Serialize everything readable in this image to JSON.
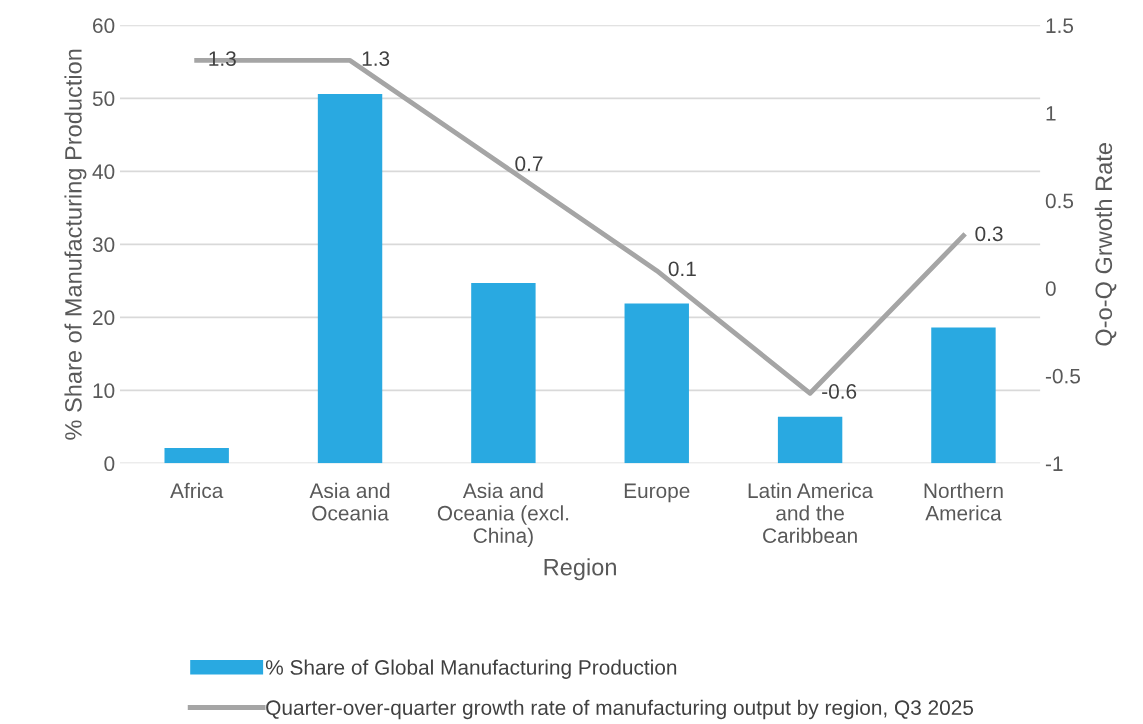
{
  "chart_data": {
    "type": "bar",
    "xlabel": "Region",
    "ylabel": "% Share of Manufacturing Production",
    "y2label": "Q-o-Q Grwoth Rate",
    "categories": [
      "Africa",
      "Asia and\nOceania",
      "Asia and\nOceania (excl.\nChina)",
      "Europe",
      "Latin America\nand the\nCaribbean",
      "Northern\nAmerica"
    ],
    "series": [
      {
        "name": "% Share of Global Manufacturing Production",
        "color": "#29a9e1",
        "values": [
          2.1,
          50.6,
          24.7,
          21.9,
          6.4,
          18.6
        ]
      },
      {
        "name": "Quarter-over-quarter growth rate of manufacturing output by region, Q3 2025",
        "type": "line",
        "axis": "y2",
        "color": "#a5a5a5",
        "data_labels": true,
        "marker": "none",
        "values": [
          1.3,
          1.3,
          0.7,
          0.1,
          -0.6,
          0.3
        ]
      }
    ],
    "ylim": [
      0,
      60
    ],
    "yticks": [
      0,
      10,
      20,
      30,
      40,
      50,
      60
    ],
    "y2lim": [
      -1,
      1.5
    ],
    "y2ticks": [
      -1,
      -0.5,
      0,
      0.5,
      1,
      1.5
    ],
    "grid": "y",
    "legend": "bottom"
  }
}
